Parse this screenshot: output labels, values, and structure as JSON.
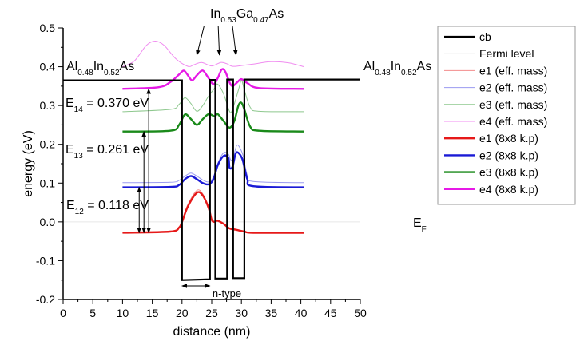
{
  "chart_data": {
    "type": "line",
    "xlabel": "distance (nm)",
    "ylabel": "energy (eV)",
    "xlim": [
      0,
      50
    ],
    "ylim": [
      -0.2,
      0.5
    ],
    "xticks": [
      0,
      5,
      10,
      15,
      20,
      25,
      30,
      35,
      40,
      45,
      50
    ],
    "yticks": [
      -0.2,
      -0.1,
      0.0,
      0.1,
      0.2,
      0.3,
      0.4,
      0.5
    ],
    "ytick_labels": [
      "-0.2",
      "-0.1",
      "0.0",
      "0.1",
      "0.2",
      "0.3",
      "0.4",
      "0.5"
    ],
    "grid": false,
    "legend_placement": "right",
    "series": [
      {
        "name": "cb",
        "color": "#000000",
        "width": 2.2,
        "points": [
          [
            0,
            0.365
          ],
          [
            20,
            0.365
          ],
          [
            20,
            -0.15
          ],
          [
            24.7,
            -0.148
          ],
          [
            24.7,
            0.366
          ],
          [
            25.6,
            0.366
          ],
          [
            25.6,
            -0.146
          ],
          [
            27.6,
            -0.146
          ],
          [
            27.6,
            0.367
          ],
          [
            28.6,
            0.367
          ],
          [
            28.6,
            -0.145
          ],
          [
            30.5,
            -0.145
          ],
          [
            30.5,
            0.367
          ],
          [
            50,
            0.367
          ]
        ]
      },
      {
        "name": "Fermi level",
        "color": "#e6e6e6",
        "width": 1,
        "points": [
          [
            0,
            0
          ],
          [
            50,
            0
          ]
        ]
      },
      {
        "name": "e1 (eff. mass)",
        "color": "#f28c8c",
        "width": 1,
        "points": [
          [
            10,
            -0.027
          ],
          [
            18,
            -0.024
          ],
          [
            19.5,
            -0.013
          ],
          [
            20,
            0.003
          ],
          [
            21,
            0.045
          ],
          [
            22.5,
            0.081
          ],
          [
            23.5,
            0.072
          ],
          [
            24.5,
            0.038
          ],
          [
            25,
            0.007
          ],
          [
            25.5,
            0.002
          ],
          [
            26,
            0.004
          ],
          [
            27,
            -0.004
          ],
          [
            28,
            -0.016
          ],
          [
            29,
            -0.019
          ],
          [
            30.5,
            -0.024
          ],
          [
            32,
            -0.027
          ],
          [
            40.5,
            -0.027
          ]
        ]
      },
      {
        "name": "e2 (eff. mass)",
        "color": "#9a9af0",
        "width": 1,
        "points": [
          [
            10,
            0.101
          ],
          [
            18,
            0.102
          ],
          [
            19.5,
            0.107
          ],
          [
            20.5,
            0.118
          ],
          [
            21.5,
            0.126
          ],
          [
            22.5,
            0.118
          ],
          [
            23.5,
            0.108
          ],
          [
            24.5,
            0.103
          ],
          [
            25.3,
            0.116
          ],
          [
            26,
            0.15
          ],
          [
            27,
            0.178
          ],
          [
            27.8,
            0.175
          ],
          [
            28.2,
            0.16
          ],
          [
            28.6,
            0.165
          ],
          [
            29.2,
            0.197
          ],
          [
            29.7,
            0.192
          ],
          [
            30.3,
            0.17
          ],
          [
            31,
            0.12
          ],
          [
            32,
            0.104
          ],
          [
            40.5,
            0.101
          ]
        ]
      },
      {
        "name": "e3 (eff. mass)",
        "color": "#8ec88e",
        "width": 1,
        "points": [
          [
            10,
            0.284
          ],
          [
            18,
            0.29
          ],
          [
            19.5,
            0.303
          ],
          [
            20.5,
            0.32
          ],
          [
            21.5,
            0.305
          ],
          [
            22.5,
            0.285
          ],
          [
            23.5,
            0.3
          ],
          [
            24.5,
            0.325
          ],
          [
            25.5,
            0.345
          ],
          [
            26,
            0.355
          ],
          [
            27,
            0.33
          ],
          [
            28,
            0.285
          ],
          [
            28.5,
            0.29
          ],
          [
            29.5,
            0.34
          ],
          [
            30,
            0.365
          ],
          [
            30.5,
            0.34
          ],
          [
            31.5,
            0.295
          ],
          [
            33,
            0.285
          ],
          [
            40.5,
            0.284
          ]
        ]
      },
      {
        "name": "e4 (eff. mass)",
        "color": "#f08cf0",
        "width": 1,
        "points": [
          [
            10,
            0.4
          ],
          [
            12,
            0.415
          ],
          [
            14,
            0.455
          ],
          [
            15.5,
            0.466
          ],
          [
            17,
            0.455
          ],
          [
            19,
            0.42
          ],
          [
            21,
            0.401
          ],
          [
            22,
            0.405
          ],
          [
            23.3,
            0.411
          ],
          [
            25,
            0.402
          ],
          [
            26.5,
            0.411
          ],
          [
            27.5,
            0.408
          ],
          [
            28.5,
            0.401
          ],
          [
            30,
            0.403
          ],
          [
            32,
            0.407
          ],
          [
            35,
            0.413
          ],
          [
            38,
            0.41
          ],
          [
            40.5,
            0.4
          ]
        ]
      },
      {
        "name": "e1 (8x8 k.p)",
        "color": "#e61919",
        "width": 2.4,
        "points": [
          [
            10,
            -0.028
          ],
          [
            18,
            -0.025
          ],
          [
            19.5,
            -0.015
          ],
          [
            20,
            0
          ],
          [
            21,
            0.04
          ],
          [
            22.5,
            0.075
          ],
          [
            23.5,
            0.068
          ],
          [
            24.5,
            0.035
          ],
          [
            25,
            0.005
          ],
          [
            25.5,
            0
          ],
          [
            26,
            0.003
          ],
          [
            27,
            -0.005
          ],
          [
            28,
            -0.017
          ],
          [
            29,
            -0.02
          ],
          [
            30.5,
            -0.025
          ],
          [
            32,
            -0.028
          ],
          [
            40.5,
            -0.028
          ]
        ]
      },
      {
        "name": "e2 (8x8 k.p)",
        "color": "#1a1ad6",
        "width": 2.4,
        "points": [
          [
            10,
            0.089
          ],
          [
            18,
            0.09
          ],
          [
            19.5,
            0.095
          ],
          [
            20.5,
            0.11
          ],
          [
            21.5,
            0.118
          ],
          [
            22.5,
            0.11
          ],
          [
            23.5,
            0.1
          ],
          [
            24.5,
            0.097
          ],
          [
            25.3,
            0.11
          ],
          [
            26,
            0.145
          ],
          [
            27,
            0.17
          ],
          [
            27.8,
            0.165
          ],
          [
            28,
            0.14
          ],
          [
            28.5,
            0.142
          ],
          [
            29,
            0.175
          ],
          [
            29.5,
            0.178
          ],
          [
            30.2,
            0.16
          ],
          [
            31,
            0.11
          ],
          [
            32,
            0.092
          ],
          [
            40.5,
            0.089
          ]
        ]
      },
      {
        "name": "e3 (8x8 k.p)",
        "color": "#1a8a1a",
        "width": 2.4,
        "points": [
          [
            10,
            0.233
          ],
          [
            18,
            0.235
          ],
          [
            19.5,
            0.25
          ],
          [
            20.5,
            0.277
          ],
          [
            21.5,
            0.265
          ],
          [
            22.5,
            0.25
          ],
          [
            23.5,
            0.265
          ],
          [
            24.5,
            0.278
          ],
          [
            25.5,
            0.272
          ],
          [
            26,
            0.278
          ],
          [
            27,
            0.26
          ],
          [
            28,
            0.243
          ],
          [
            28.8,
            0.26
          ],
          [
            29.5,
            0.3
          ],
          [
            30,
            0.307
          ],
          [
            30.5,
            0.29
          ],
          [
            31.5,
            0.245
          ],
          [
            33,
            0.235
          ],
          [
            40.5,
            0.233
          ]
        ]
      },
      {
        "name": "e4 (8x8 k.p)",
        "color": "#e619e6",
        "width": 2.4,
        "points": [
          [
            10,
            0.343
          ],
          [
            16,
            0.347
          ],
          [
            18,
            0.36
          ],
          [
            19.5,
            0.38
          ],
          [
            20.3,
            0.39
          ],
          [
            21,
            0.378
          ],
          [
            21.7,
            0.365
          ],
          [
            22.5,
            0.378
          ],
          [
            23.5,
            0.39
          ],
          [
            24.5,
            0.37
          ],
          [
            25.3,
            0.355
          ],
          [
            26,
            0.37
          ],
          [
            26.7,
            0.393
          ],
          [
            27.3,
            0.387
          ],
          [
            28,
            0.36
          ],
          [
            28.5,
            0.35
          ],
          [
            29.3,
            0.36
          ],
          [
            30,
            0.368
          ],
          [
            31,
            0.358
          ],
          [
            33,
            0.345
          ],
          [
            40.5,
            0.343
          ]
        ]
      }
    ],
    "transitions": [
      {
        "x": 12.8,
        "from": -0.028,
        "to": 0.089
      },
      {
        "x": 13.6,
        "from": -0.028,
        "to": 0.233
      },
      {
        "x": 14.4,
        "from": -0.028,
        "to": 0.343
      }
    ],
    "annotations": {
      "e14": {
        "main": "E",
        "sub": "14",
        "rest": " = 0.370 eV"
      },
      "e13": {
        "main": "E",
        "sub": "13",
        "rest": " = 0.261 eV"
      },
      "e12": {
        "main": "E",
        "sub": "12",
        "rest": " = 0.118 eV"
      },
      "barrier": {
        "a": "Al",
        "a_sub": "0.48",
        "b": "In",
        "b_sub": "0.52",
        "c": "As"
      },
      "well": {
        "a": "In",
        "a_sub": "0.53",
        "b": "Ga",
        "b_sub": "0.47",
        "c": "As"
      },
      "fermi": {
        "main": "E",
        "sub": "F"
      },
      "ntype": "n-type"
    }
  }
}
